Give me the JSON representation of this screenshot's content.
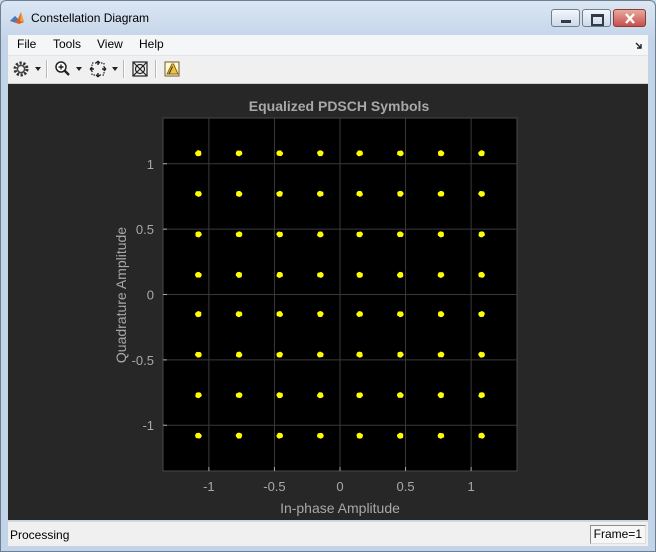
{
  "window": {
    "title": "Constellation Diagram",
    "icon": "matlab-icon",
    "controls": [
      "minimize",
      "maximize",
      "close"
    ]
  },
  "menu": {
    "file": "File",
    "tools": "Tools",
    "view": "View",
    "help": "Help"
  },
  "toolbar": {
    "items": [
      "settings-icon",
      "zoom-in-icon",
      "scale-axes-icon",
      "measurements-icon",
      "edit-plot-icon"
    ]
  },
  "status": {
    "text": "Processing",
    "frame": "Frame=1"
  },
  "colors": {
    "plot_background": "#000000",
    "figure_background": "#272727",
    "points": "#ffff00",
    "text": "#a8a8a8",
    "grid": "#3a3a3a"
  },
  "chart_data": {
    "type": "scatter",
    "title": "Equalized PDSCH Symbols",
    "xlabel": "In-phase Amplitude",
    "ylabel": "Quadrature Amplitude",
    "xlim": [
      -1.35,
      1.35
    ],
    "ylim": [
      -1.35,
      1.35
    ],
    "xticks": [
      -1,
      -0.5,
      0,
      0.5,
      1
    ],
    "yticks": [
      -1,
      -0.5,
      0,
      0.5,
      1
    ],
    "xtick_labels": [
      "-1",
      "-0.5",
      "0",
      "0.5",
      "1"
    ],
    "ytick_labels": [
      "-1",
      "-0.5",
      "0",
      "0.5",
      "1"
    ],
    "grid": true,
    "constellation": "64QAM",
    "levels": [
      -1.08,
      -0.77,
      -0.46,
      -0.15,
      0.15,
      0.46,
      0.77,
      1.08
    ],
    "point_color": "#ffff00"
  }
}
